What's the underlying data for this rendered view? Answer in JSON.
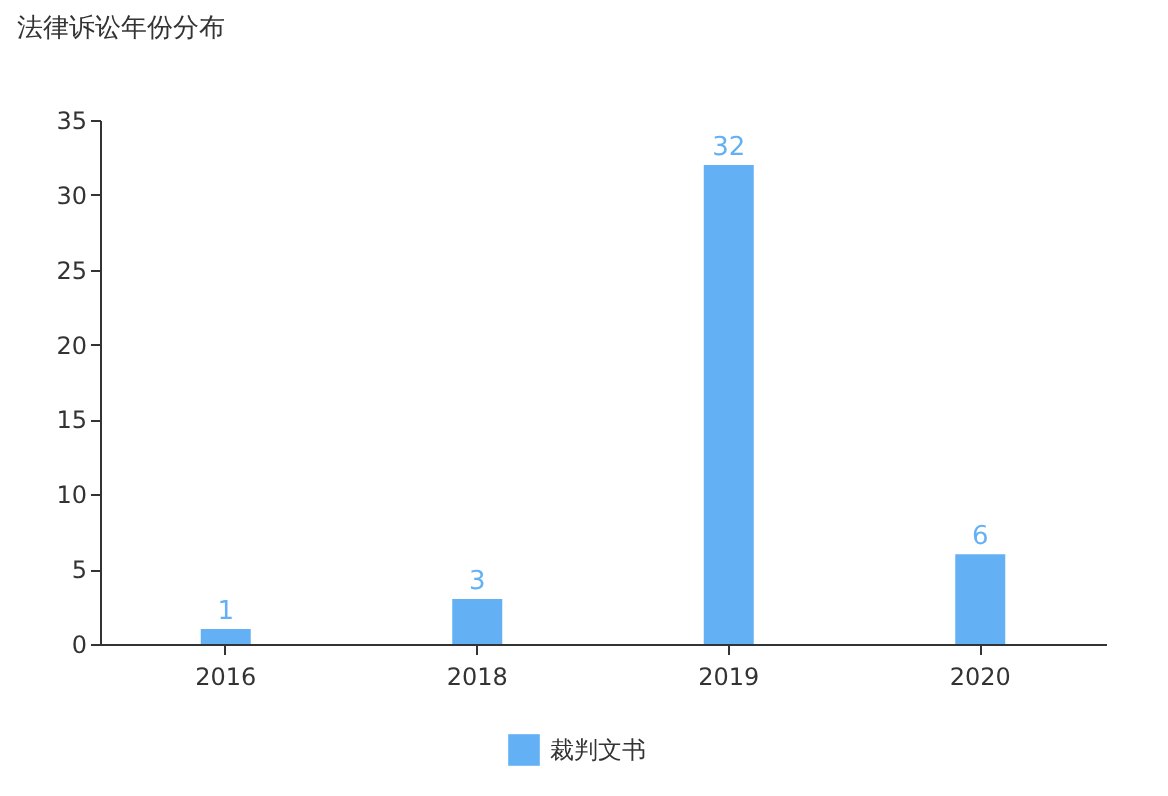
{
  "chart_data": {
    "type": "bar",
    "title": "法律诉讼年份分布",
    "categories": [
      "2016",
      "2018",
      "2019",
      "2020"
    ],
    "series": [
      {
        "name": "裁判文书",
        "color": "#64b0f5",
        "values": [
          1,
          3,
          32,
          6
        ]
      }
    ],
    "ylim": [
      0,
      35
    ],
    "yticks": [
      0,
      5,
      10,
      15,
      20,
      25,
      30,
      35
    ],
    "data_labels": true,
    "legend": "bottom",
    "grid": false
  }
}
